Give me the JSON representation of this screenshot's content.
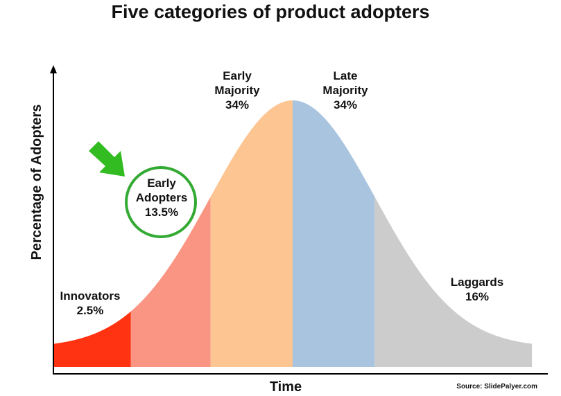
{
  "chart_data": {
    "type": "bell",
    "title": "Five categories of product adopters",
    "x_label": "Time",
    "y_label": "Percentage of Adopters",
    "source": "Source:  SlidePalyer.com",
    "categories": [
      "Innovators",
      "Early Adopters",
      "Early Majority",
      "Late Majority",
      "Laggards"
    ],
    "values": [
      2.5,
      13.5,
      34,
      34,
      16
    ],
    "value_labels": [
      "2.5%",
      "13.5%",
      "34%",
      "34%",
      "16%"
    ],
    "colors": [
      "#ff3311",
      "#fa9584",
      "#fdc591",
      "#a8c4de",
      "#cccccc"
    ]
  }
}
